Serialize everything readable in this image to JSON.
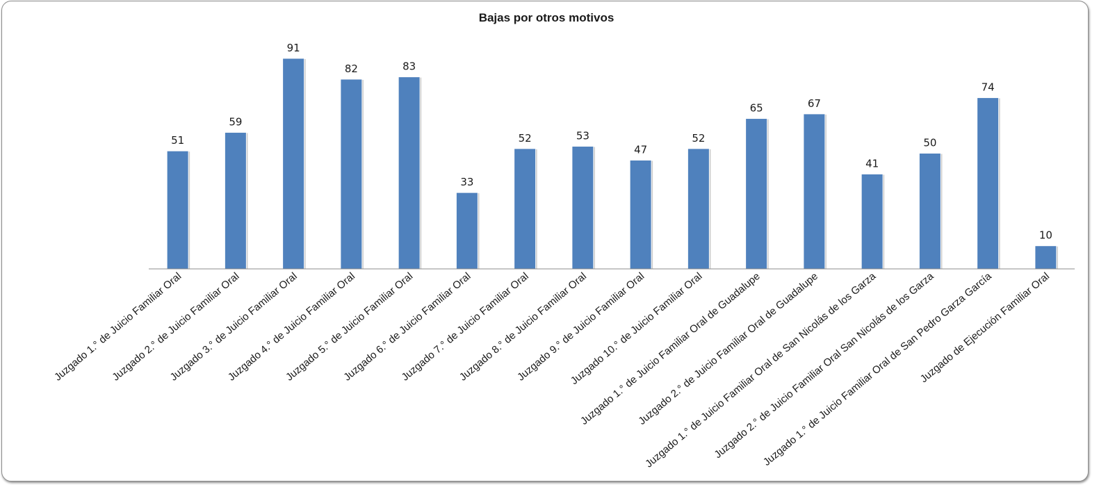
{
  "chart_data": {
    "type": "bar",
    "title": "Bajas por otros motivos",
    "xlabel": "",
    "ylabel": "",
    "ylim": [
      0,
      100
    ],
    "grid": false,
    "legend": "none",
    "categories": [
      "Juzgado 1.° de Juicio Familiar Oral",
      "Juzgado 2.° de Juicio Familiar Oral",
      "Juzgado 3.° de Juicio Familiar Oral",
      "Juzgado 4.° de Juicio Familiar Oral",
      "Juzgado 5.° de Juicio Familiar Oral",
      "Juzgado 6.° de Juicio Familiar Oral",
      "Juzgado 7.° de Juicio Familiar Oral",
      "Juzgado 8.° de Juicio Familiar Oral",
      "Juzgado 9.° de Juicio Familiar Oral",
      "Juzgado 10.° de Juicio Familiar Oral",
      "Juzgado 1.° de Juicio Familiar Oral de Guadalupe",
      "Juzgado 2.° de Juicio Familiar Oral de Guadalupe",
      "Juzgado 1.° de Juicio Familiar Oral de San Nicolás de los Garza",
      "Juzgado 2.° de Juicio Familiar Oral San Nicolás de los Garza",
      "Juzgado 1.° de Juicio Familiar Oral de San Pedro Garza García",
      "Juzgado de Ejecución Familiar Oral"
    ],
    "series": [
      {
        "values": [
          51,
          59,
          91,
          82,
          83,
          33,
          52,
          53,
          47,
          52,
          65,
          67,
          41,
          50,
          74,
          10
        ]
      }
    ],
    "colors": {
      "bar": "#4f81bd",
      "bar_shadow": "#c9c9c9",
      "axis": "#8c8c8c",
      "text": "#1a1a1a"
    }
  }
}
